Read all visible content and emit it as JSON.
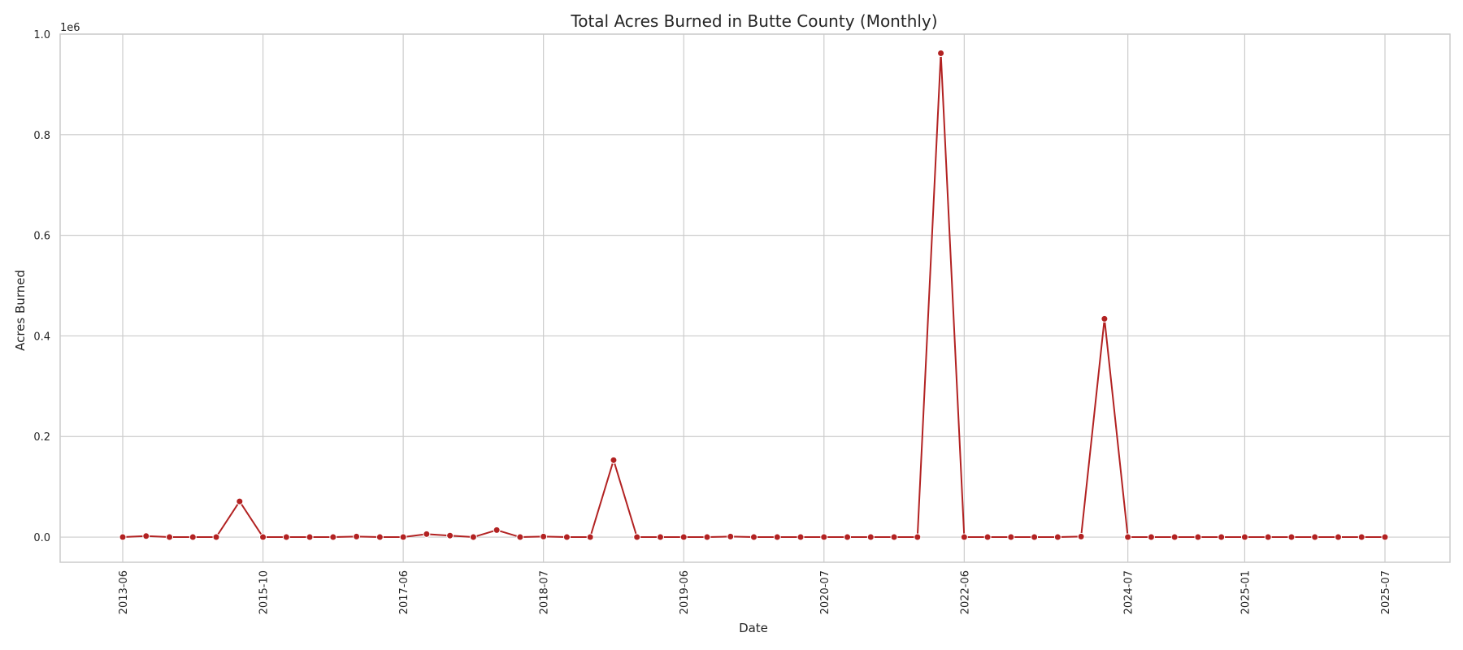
{
  "chart_data": {
    "type": "line",
    "title": "Total Acres Burned in Butte County (Monthly)",
    "xlabel": "Date",
    "ylabel": "Acres Burned",
    "y_multiplier_label": "1e6",
    "ylim": [
      -0.05,
      1.0
    ],
    "yticks": [
      0.0,
      0.2,
      0.4,
      0.6,
      0.8,
      1.0
    ],
    "ytick_labels": [
      "0.0",
      "0.2",
      "0.4",
      "0.6",
      "0.8",
      "1.0"
    ],
    "xtick_labels": [
      "2013-06",
      "2015-10",
      "2017-06",
      "2018-07",
      "2019-06",
      "2020-07",
      "2022-06",
      "2024-07",
      "2025-01",
      "2025-07"
    ],
    "xtick_positions": [
      0,
      6,
      12,
      18,
      24,
      30,
      36,
      43,
      48,
      54
    ],
    "grid": true,
    "line_color": "#b22222",
    "series": [
      {
        "values": [
          0.0,
          0.002,
          0.0,
          0.0,
          0.0,
          0.071,
          0.0,
          0.0,
          0.0,
          0.0,
          0.001,
          0.0,
          0.0,
          0.006,
          0.003,
          0.0,
          0.014,
          0.0,
          0.001,
          0.0,
          0.0,
          0.153,
          0.0,
          0.0,
          0.0,
          0.0,
          0.001,
          0.0,
          0.0,
          0.0,
          0.0,
          0.0,
          0.0,
          0.0,
          0.0,
          0.962,
          0.0,
          0.0,
          0.0,
          0.0,
          0.0,
          0.001,
          0.434,
          0.0,
          0.0,
          0.0,
          0.0,
          0.0,
          0.0,
          0.0,
          0.0,
          0.0,
          0.0,
          0.0,
          0.0
        ]
      }
    ]
  }
}
